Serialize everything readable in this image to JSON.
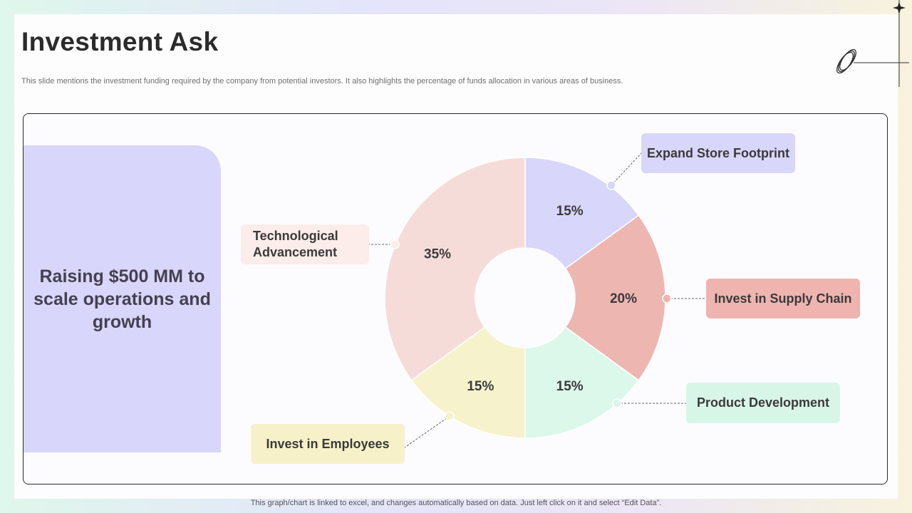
{
  "slide": {
    "title": "Investment Ask",
    "subtitle": "This slide mentions the investment funding required by the company from potential investors. It also highlights the percentage of funds allocation in various areas of business.",
    "panel_text": "Raising $500 MM to scale operations and growth",
    "footer": "This graph/chart is linked to excel,  and changes automatically based on data. Just left click on it and select “Edit Data”."
  },
  "chart_data": {
    "type": "pie",
    "style": "donut",
    "start": "top, clockwise",
    "unit": "%",
    "slices": [
      {
        "name": "Expand Store Footprint",
        "value": 15,
        "label": "15%",
        "color": "#d9d6fb",
        "callout_color": "#d9d6fb"
      },
      {
        "name": "Invest in Supply Chain",
        "value": 20,
        "label": "20%",
        "color": "#eeb6b1",
        "callout_color": "#efb4af"
      },
      {
        "name": "Product Development",
        "value": 15,
        "label": "15%",
        "color": "#dbf8ea",
        "callout_color": "#d8f6e8"
      },
      {
        "name": "Invest in Employees",
        "value": 15,
        "label": "15%",
        "color": "#f6f3cc",
        "callout_color": "#f6f1c9"
      },
      {
        "name": "Technological Advancement",
        "value": 35,
        "label": "35%",
        "color": "#f6dcd9",
        "callout_color": "#fcecea"
      }
    ]
  }
}
